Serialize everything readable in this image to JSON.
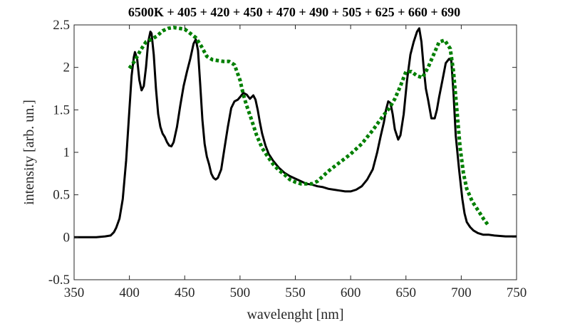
{
  "chart_data": {
    "type": "line",
    "title": "6500K + 405 + 420 + 450 + 470 + 490 + 505 + 625 + 660 + 690",
    "xlabel": "wavelenght [nm]",
    "ylabel": "intensity [arb. un.]",
    "xlim": [
      350,
      750
    ],
    "ylim": [
      -0.5,
      2.5
    ],
    "xticks": [
      "350",
      "400",
      "450",
      "500",
      "550",
      "600",
      "650",
      "700",
      "750"
    ],
    "yticks": [
      "-0.5",
      "0",
      "0.5",
      "1",
      "1.5",
      "2",
      "2.5"
    ],
    "grid": false,
    "legend": "none",
    "series": [
      {
        "color": "#000000",
        "style": "solid",
        "x": [
          350,
          360,
          370,
          378,
          383,
          386,
          388,
          391,
          394,
          397,
          400,
          402,
          404,
          405,
          407,
          409,
          411,
          413,
          415,
          417,
          419,
          420,
          422,
          424,
          426,
          428,
          430,
          432,
          434,
          436,
          438,
          440,
          443,
          446,
          449,
          452,
          455,
          458,
          460,
          462,
          464,
          466,
          468,
          470,
          472,
          474,
          476,
          478,
          480,
          483,
          486,
          489,
          492,
          495,
          498,
          500,
          503,
          506,
          509,
          512,
          514,
          516,
          518,
          520,
          523,
          526,
          530,
          535,
          540,
          545,
          550,
          555,
          560,
          565,
          570,
          575,
          580,
          585,
          590,
          595,
          600,
          605,
          610,
          615,
          620,
          624,
          627,
          630,
          632,
          634,
          636,
          638,
          640,
          643,
          645,
          648,
          651,
          654,
          657,
          660,
          662,
          664,
          666,
          668,
          670,
          673,
          676,
          678,
          680,
          683,
          686,
          689,
          691,
          693,
          695,
          698,
          701,
          703,
          705,
          708,
          711,
          715,
          720,
          725,
          730,
          740,
          750
        ],
        "y": [
          0,
          0,
          0,
          0.01,
          0.02,
          0.06,
          0.11,
          0.22,
          0.45,
          0.9,
          1.5,
          1.9,
          2.12,
          2.18,
          2.1,
          1.85,
          1.73,
          1.78,
          2.0,
          2.3,
          2.42,
          2.4,
          2.15,
          1.75,
          1.45,
          1.3,
          1.22,
          1.18,
          1.12,
          1.08,
          1.07,
          1.12,
          1.3,
          1.55,
          1.78,
          1.95,
          2.1,
          2.28,
          2.33,
          2.2,
          1.8,
          1.38,
          1.1,
          0.95,
          0.86,
          0.75,
          0.7,
          0.68,
          0.7,
          0.8,
          1.05,
          1.3,
          1.52,
          1.6,
          1.62,
          1.65,
          1.7,
          1.68,
          1.63,
          1.67,
          1.62,
          1.5,
          1.35,
          1.22,
          1.08,
          0.98,
          0.9,
          0.82,
          0.76,
          0.72,
          0.69,
          0.66,
          0.63,
          0.62,
          0.6,
          0.59,
          0.57,
          0.56,
          0.55,
          0.54,
          0.54,
          0.56,
          0.6,
          0.68,
          0.8,
          1.0,
          1.18,
          1.35,
          1.5,
          1.6,
          1.58,
          1.45,
          1.27,
          1.15,
          1.2,
          1.45,
          1.85,
          2.15,
          2.3,
          2.42,
          2.46,
          2.3,
          2.0,
          1.75,
          1.62,
          1.4,
          1.4,
          1.5,
          1.65,
          1.85,
          2.05,
          2.1,
          2.08,
          1.7,
          1.2,
          0.8,
          0.45,
          0.28,
          0.18,
          0.12,
          0.08,
          0.05,
          0.03,
          0.03,
          0.02,
          0.01,
          0.01
        ]
      },
      {
        "color": "#007f00",
        "style": "dotted",
        "x": [
          400,
          405,
          410,
          415,
          420,
          425,
          430,
          435,
          440,
          445,
          450,
          455,
          460,
          465,
          470,
          475,
          480,
          485,
          490,
          495,
          500,
          503,
          506,
          510,
          515,
          520,
          525,
          530,
          535,
          540,
          545,
          550,
          555,
          560,
          565,
          570,
          575,
          580,
          585,
          590,
          595,
          600,
          605,
          610,
          615,
          620,
          625,
          630,
          635,
          640,
          645,
          650,
          655,
          660,
          665,
          670,
          675,
          680,
          685,
          690,
          693,
          696,
          699,
          702,
          705,
          710,
          715,
          720,
          725
        ],
        "y": [
          1.99,
          2.08,
          2.2,
          2.3,
          2.33,
          2.37,
          2.43,
          2.46,
          2.47,
          2.46,
          2.45,
          2.4,
          2.35,
          2.25,
          2.13,
          2.09,
          2.08,
          2.07,
          2.07,
          2.03,
          1.85,
          1.68,
          1.55,
          1.4,
          1.2,
          1.05,
          0.95,
          0.86,
          0.79,
          0.74,
          0.68,
          0.65,
          0.63,
          0.63,
          0.63,
          0.66,
          0.72,
          0.78,
          0.83,
          0.88,
          0.93,
          0.98,
          1.04,
          1.1,
          1.18,
          1.26,
          1.35,
          1.44,
          1.52,
          1.63,
          1.78,
          1.95,
          1.95,
          1.9,
          1.88,
          2.0,
          2.15,
          2.3,
          2.32,
          2.22,
          1.95,
          1.5,
          1.05,
          0.75,
          0.57,
          0.42,
          0.32,
          0.22,
          0.13
        ]
      }
    ]
  }
}
